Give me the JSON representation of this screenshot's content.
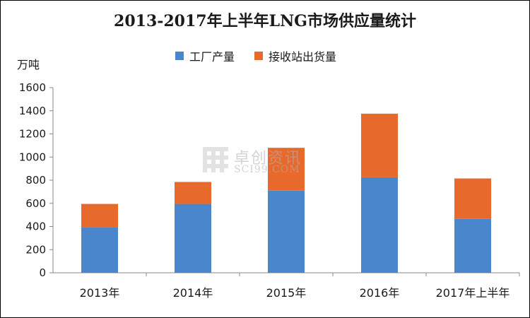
{
  "chart_data": {
    "type": "bar",
    "stacked": true,
    "title": "2013-2017年上半年LNG市场供应量统计",
    "ylabel": "万吨",
    "xlabel": "",
    "categories": [
      "2013年",
      "2014年",
      "2015年",
      "2016年",
      "2017年上半年"
    ],
    "series": [
      {
        "name": "工厂产量",
        "color": "#4A86CC",
        "values": [
          395,
          595,
          710,
          825,
          465
        ]
      },
      {
        "name": "接收站出货量",
        "color": "#E8692C",
        "values": [
          200,
          190,
          370,
          550,
          350
        ]
      }
    ],
    "ylim": [
      0,
      1600
    ],
    "yticks": [
      0,
      200,
      400,
      600,
      800,
      1000,
      1200,
      1400,
      1600
    ],
    "grid": false,
    "legend_position": "top"
  },
  "watermark": {
    "cn": "卓创资讯",
    "en": "SCI99.COM"
  }
}
